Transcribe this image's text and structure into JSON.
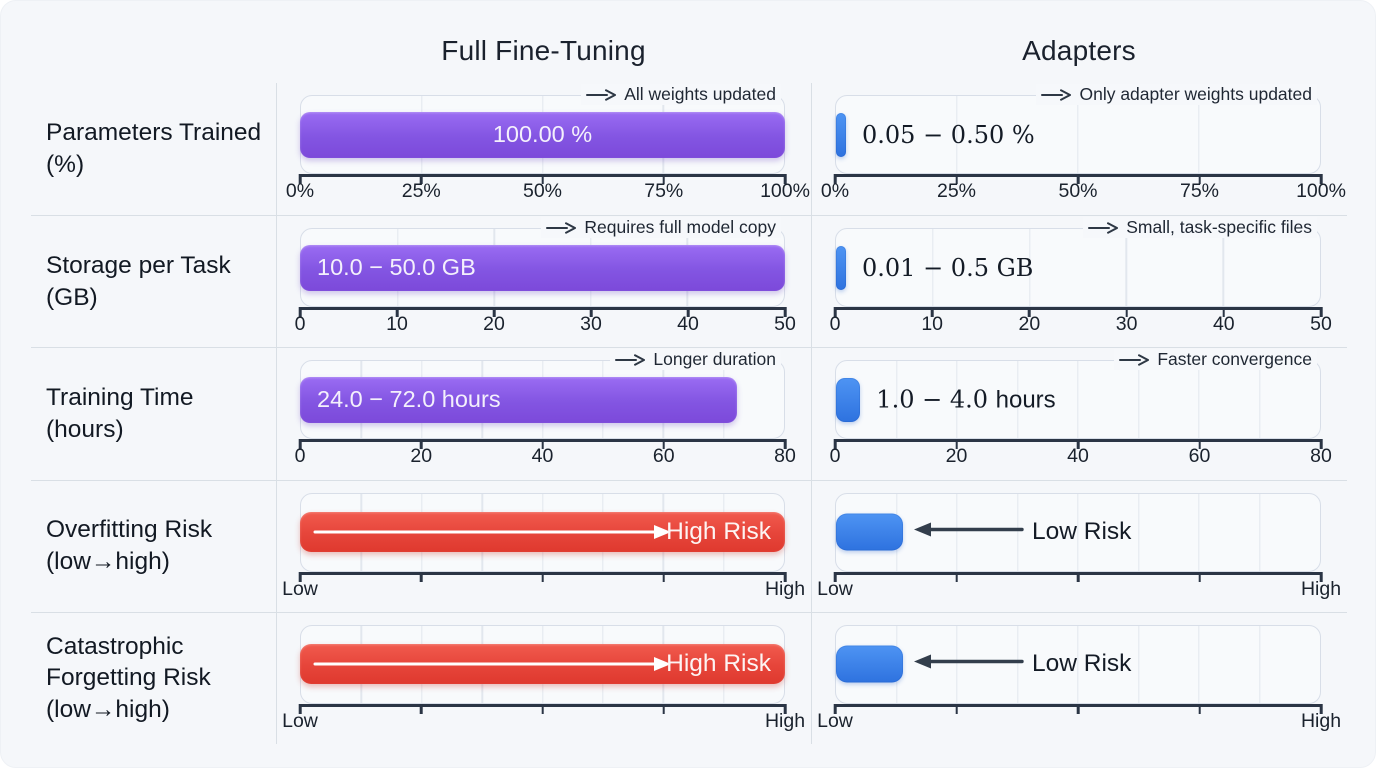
{
  "columns": {
    "full_label": "Full Fine-Tuning",
    "adapters_label": "Adapters"
  },
  "colors": {
    "background": "#f5f7fa",
    "panel": "#f8fafc",
    "purple_bar": "#8355e2",
    "blue_bar": "#3b82f6",
    "red_bar": "#e6453a",
    "axis": "#2b3545",
    "divider": "#d9dfe5"
  },
  "chart_data": {
    "type": "bar",
    "layout": "metric rows compared across two columns; bars drawn from 0 to max value",
    "comparison_columns": [
      "Full Fine-Tuning",
      "Adapters"
    ],
    "rows": [
      {
        "kind": "range",
        "metric": "Parameters Trained (%)",
        "axis": {
          "min": 0,
          "max": 100,
          "tick_positions": [
            0,
            25,
            50,
            75,
            100
          ],
          "tick_labels": [
            "0%",
            "25%",
            "50%",
            "75%",
            "100%"
          ],
          "grid_divisions": 4
        },
        "full": {
          "range_min": 100,
          "range_max": 100,
          "bar_to": 100,
          "label": "100.00 %",
          "label_align": "center",
          "annotation": "All weights updated"
        },
        "adapters": {
          "range_min": 0.05,
          "range_max": 0.5,
          "bar_to": 0.5,
          "label_value": "0.05 − 0.50",
          "label_unit": "%",
          "unit_font": "serif",
          "annotation": "Only adapter weights updated"
        }
      },
      {
        "kind": "range",
        "metric": "Storage per Task (GB)",
        "axis": {
          "min": 0,
          "max": 50,
          "tick_positions": [
            0,
            10,
            20,
            30,
            40,
            50
          ],
          "tick_labels": [
            "0",
            "10",
            "20",
            "30",
            "40",
            "50"
          ],
          "grid_divisions": 5
        },
        "full": {
          "range_min": 10,
          "range_max": 50,
          "bar_to": 50,
          "label": "10.0 − 50.0 GB",
          "label_align": "left",
          "annotation": "Requires full model copy"
        },
        "adapters": {
          "range_min": 0.01,
          "range_max": 0.5,
          "bar_to": 0.5,
          "label_value": "0.01 − 0.5",
          "label_unit": "GB",
          "unit_font": "serif",
          "annotation": "Small, task-specific files"
        }
      },
      {
        "kind": "range",
        "metric": "Training Time (hours)",
        "axis": {
          "min": 0,
          "max": 80,
          "tick_positions": [
            0,
            20,
            40,
            60,
            80
          ],
          "tick_labels": [
            "0",
            "20",
            "40",
            "60",
            "80"
          ],
          "grid_divisions": 8
        },
        "full": {
          "range_min": 24,
          "range_max": 72,
          "bar_to": 72,
          "label": "24.0 − 72.0 hours",
          "label_align": "left",
          "annotation": "Longer duration"
        },
        "adapters": {
          "range_min": 1,
          "range_max": 4,
          "bar_to": 4,
          "label_value": "1.0 − 4.0",
          "label_unit": "hours",
          "unit_font": "sans",
          "annotation": "Faster convergence"
        }
      },
      {
        "kind": "risk",
        "metric": "Overfitting Risk (low→high)",
        "axis": {
          "min": 0,
          "max": 1,
          "tick_positions": [
            0,
            0.25,
            0.5,
            0.75,
            1
          ],
          "tick_labels": [
            "Low",
            "",
            "",
            "",
            "High"
          ],
          "grid_divisions": 8
        },
        "full": {
          "label": "High Risk",
          "bar_to": 1
        },
        "adapters": {
          "label": "Low Risk",
          "bar_to": 0.138
        }
      },
      {
        "kind": "risk",
        "metric": "Catastrophic Forgetting Risk (low→high)",
        "axis": {
          "min": 0,
          "max": 1,
          "tick_positions": [
            0,
            0.25,
            0.5,
            0.75,
            1
          ],
          "tick_labels": [
            "Low",
            "",
            "",
            "",
            "High"
          ],
          "grid_divisions": 8
        },
        "full": {
          "label": "High Risk",
          "bar_to": 1
        },
        "adapters": {
          "label": "Low Risk",
          "bar_to": 0.138
        }
      }
    ]
  }
}
